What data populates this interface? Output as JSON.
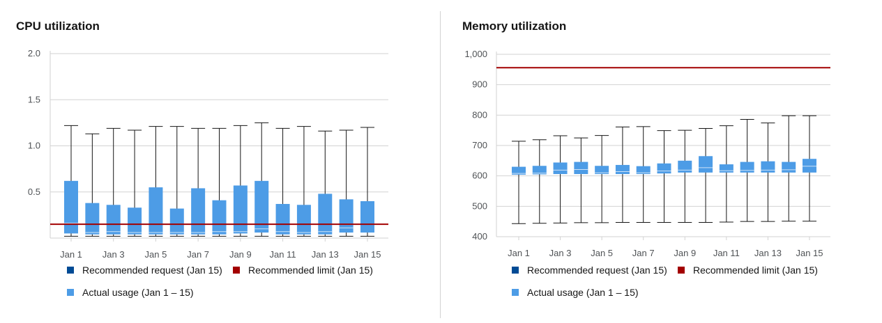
{
  "chart_data": [
    {
      "type": "box",
      "title": "CPU utilization",
      "categories": [
        "Jan 1",
        "Jan 2",
        "Jan 3",
        "Jan 4",
        "Jan 5",
        "Jan 6",
        "Jan 7",
        "Jan 8",
        "Jan 9",
        "Jan 10",
        "Jan 11",
        "Jan 12",
        "Jan 13",
        "Jan 14",
        "Jan 15"
      ],
      "x_tick_labels": [
        "Jan 1",
        "Jan 3",
        "Jan 5",
        "Jan 7",
        "Jan 9",
        "Jan 11",
        "Jan 13",
        "Jan 15"
      ],
      "y_ticks": [
        "2.0",
        "1.5",
        "1.0",
        "0.5"
      ],
      "y_tick_values": [
        2.0,
        1.5,
        1.0,
        0.5
      ],
      "ylim": [
        0,
        2.0
      ],
      "grid": true,
      "series": [
        {
          "name": "Actual usage (Jan 1 – 15)",
          "boxes": [
            {
              "min": 0.02,
              "q1": 0.05,
              "median": 0.16,
              "q3": 0.62,
              "max": 1.22
            },
            {
              "min": 0.02,
              "q1": 0.04,
              "median": 0.06,
              "q3": 0.38,
              "max": 1.13
            },
            {
              "min": 0.02,
              "q1": 0.04,
              "median": 0.07,
              "q3": 0.36,
              "max": 1.19
            },
            {
              "min": 0.02,
              "q1": 0.04,
              "median": 0.06,
              "q3": 0.33,
              "max": 1.17
            },
            {
              "min": 0.02,
              "q1": 0.04,
              "median": 0.06,
              "q3": 0.55,
              "max": 1.21
            },
            {
              "min": 0.02,
              "q1": 0.04,
              "median": 0.06,
              "q3": 0.32,
              "max": 1.21
            },
            {
              "min": 0.02,
              "q1": 0.04,
              "median": 0.06,
              "q3": 0.54,
              "max": 1.19
            },
            {
              "min": 0.02,
              "q1": 0.04,
              "median": 0.07,
              "q3": 0.41,
              "max": 1.19
            },
            {
              "min": 0.02,
              "q1": 0.05,
              "median": 0.07,
              "q3": 0.57,
              "max": 1.22
            },
            {
              "min": 0.02,
              "q1": 0.06,
              "median": 0.1,
              "q3": 0.62,
              "max": 1.25
            },
            {
              "min": 0.02,
              "q1": 0.04,
              "median": 0.07,
              "q3": 0.37,
              "max": 1.19
            },
            {
              "min": 0.02,
              "q1": 0.04,
              "median": 0.06,
              "q3": 0.36,
              "max": 1.21
            },
            {
              "min": 0.02,
              "q1": 0.04,
              "median": 0.07,
              "q3": 0.48,
              "max": 1.16
            },
            {
              "min": 0.02,
              "q1": 0.06,
              "median": 0.11,
              "q3": 0.42,
              "max": 1.17
            },
            {
              "min": 0.02,
              "q1": 0.06,
              "median": 0.15,
              "q3": 0.4,
              "max": 1.2
            }
          ]
        }
      ],
      "recommended_limit": 0.15,
      "colors": {
        "actual": "#4d9ce6",
        "limit": "#a30000",
        "request": "#004b95",
        "whisker": "#151515",
        "grid": "#d2d2d2",
        "median": "#cfe3f7"
      }
    },
    {
      "type": "box",
      "title": "Memory utilization",
      "categories": [
        "Jan 1",
        "Jan 2",
        "Jan 3",
        "Jan 4",
        "Jan 5",
        "Jan 6",
        "Jan 7",
        "Jan 8",
        "Jan 9",
        "Jan 10",
        "Jan 11",
        "Jan 12",
        "Jan 13",
        "Jan 14",
        "Jan 15"
      ],
      "x_tick_labels": [
        "Jan 1",
        "Jan 3",
        "Jan 5",
        "Jan 7",
        "Jan 9",
        "Jan 11",
        "Jan 13",
        "Jan 15"
      ],
      "y_ticks": [
        "1,000",
        "900",
        "800",
        "700",
        "600",
        "500",
        "400"
      ],
      "y_tick_values": [
        1000,
        900,
        800,
        700,
        600,
        500,
        400
      ],
      "ylim": [
        400,
        1000
      ],
      "grid": true,
      "series": [
        {
          "name": "Actual usage (Jan 1 – 15)",
          "boxes": [
            {
              "min": 443,
              "q1": 604,
              "median": 608,
              "q3": 630,
              "max": 714
            },
            {
              "min": 444,
              "q1": 605,
              "median": 609,
              "q3": 633,
              "max": 719
            },
            {
              "min": 445,
              "q1": 606,
              "median": 619,
              "q3": 644,
              "max": 732
            },
            {
              "min": 446,
              "q1": 606,
              "median": 621,
              "q3": 646,
              "max": 725
            },
            {
              "min": 446,
              "q1": 606,
              "median": 610,
              "q3": 633,
              "max": 733
            },
            {
              "min": 447,
              "q1": 606,
              "median": 614,
              "q3": 636,
              "max": 761
            },
            {
              "min": 447,
              "q1": 606,
              "median": 610,
              "q3": 632,
              "max": 762
            },
            {
              "min": 447,
              "q1": 608,
              "median": 616,
              "q3": 641,
              "max": 749
            },
            {
              "min": 447,
              "q1": 611,
              "median": 619,
              "q3": 650,
              "max": 750
            },
            {
              "min": 447,
              "q1": 611,
              "median": 627,
              "q3": 665,
              "max": 756
            },
            {
              "min": 448,
              "q1": 611,
              "median": 617,
              "q3": 638,
              "max": 765
            },
            {
              "min": 450,
              "q1": 611,
              "median": 618,
              "q3": 646,
              "max": 786
            },
            {
              "min": 450,
              "q1": 611,
              "median": 619,
              "q3": 648,
              "max": 774
            },
            {
              "min": 451,
              "q1": 611,
              "median": 620,
              "q3": 646,
              "max": 798
            },
            {
              "min": 451,
              "q1": 611,
              "median": 632,
              "q3": 656,
              "max": 798
            }
          ]
        }
      ],
      "recommended_limit": 956,
      "colors": {
        "actual": "#4d9ce6",
        "limit": "#a30000",
        "request": "#004b95",
        "whisker": "#151515",
        "grid": "#d2d2d2",
        "median": "#cfe3f7"
      }
    }
  ],
  "legend": {
    "recommended_request": "Recommended request (Jan 15)",
    "recommended_limit": "Recommended limit (Jan 15)",
    "actual_usage": "Actual usage (Jan 1 – 15)"
  }
}
